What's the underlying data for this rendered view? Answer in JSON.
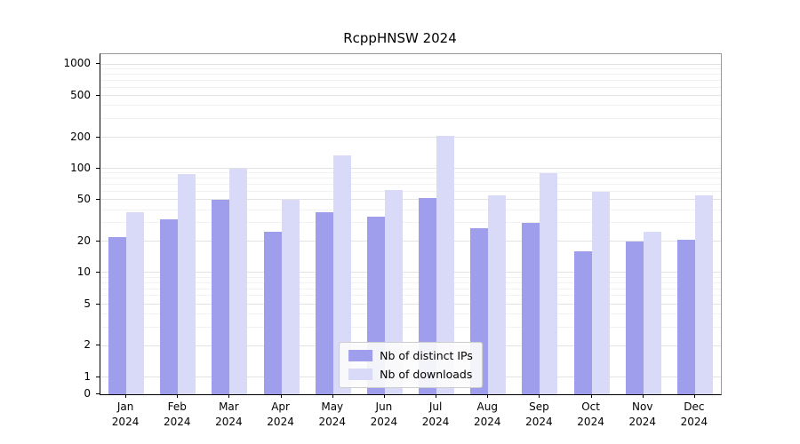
{
  "chart_data": {
    "type": "bar",
    "title": "RcppHNSW 2024",
    "year": "2024",
    "categories": [
      "Jan",
      "Feb",
      "Mar",
      "Apr",
      "May",
      "Jun",
      "Jul",
      "Aug",
      "Sep",
      "Oct",
      "Nov",
      "Dec"
    ],
    "series": [
      {
        "name": "Nb of distinct IPs",
        "color": "#9e9eec",
        "values": [
          22,
          33,
          50,
          25,
          38,
          35,
          52,
          27,
          30,
          16,
          20,
          21
        ]
      },
      {
        "name": "Nb of downloads",
        "color": "#d9d9f8",
        "values": [
          38,
          88,
          100,
          50,
          135,
          63,
          205,
          55,
          90,
          60,
          25,
          55
        ]
      }
    ],
    "y_ticks": [
      0,
      1,
      2,
      5,
      10,
      20,
      50,
      100,
      200,
      500,
      1000
    ],
    "y_minor_ticks": [
      3,
      4,
      6,
      7,
      8,
      9,
      30,
      40,
      60,
      70,
      80,
      90,
      300,
      400,
      600,
      700,
      800,
      900
    ],
    "yscale": "log",
    "ylim": [
      0,
      1200
    ],
    "grid": true,
    "legend_position": "lower center"
  }
}
